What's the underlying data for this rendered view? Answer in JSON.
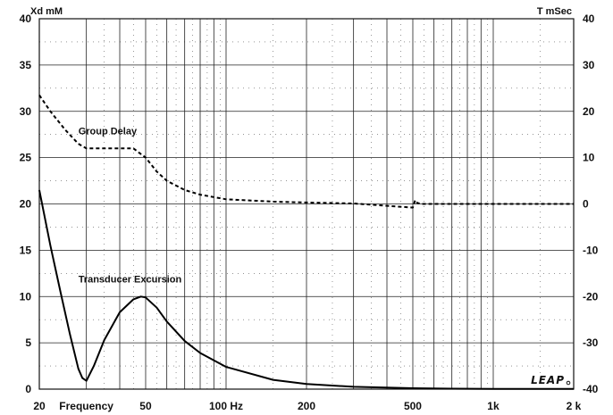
{
  "chart_data": {
    "type": "line",
    "x_scale": "log",
    "xlim": [
      20,
      2000
    ],
    "ylim_left": [
      0,
      40
    ],
    "ylim_right": [
      -40,
      40
    ],
    "grid": true,
    "left_axis_label": "Xd mM",
    "right_axis_label": "T mSec",
    "x_tick_labels": [
      {
        "value": 20,
        "label": "20"
      },
      {
        "value": 50,
        "label": "50"
      },
      {
        "value": 100,
        "label": "100 Hz"
      },
      {
        "value": 200,
        "label": "200"
      },
      {
        "value": 500,
        "label": "500"
      },
      {
        "value": 1000,
        "label": "1k"
      },
      {
        "value": 2000,
        "label": "2 k"
      }
    ],
    "x_caption": {
      "label": "Frequency",
      "value": 30
    },
    "left_ticks": [
      0,
      5,
      10,
      15,
      20,
      25,
      30,
      35,
      40
    ],
    "right_ticks": [
      -40,
      -30,
      -20,
      -10,
      0,
      10,
      20,
      30,
      40
    ],
    "series": [
      {
        "name": "Group Delay",
        "axis": "right",
        "style": "dashed",
        "label_x": 28,
        "label_y": 15,
        "x": [
          20,
          22,
          25,
          28,
          30,
          35,
          40,
          45,
          50,
          55,
          60,
          70,
          80,
          100,
          150,
          200,
          300,
          500,
          510,
          520,
          540,
          700,
          1000,
          1500,
          2000
        ],
        "y": [
          23.5,
          20,
          16,
          13,
          12,
          12,
          12,
          12,
          10,
          7,
          5,
          3,
          2,
          1,
          0.5,
          0.3,
          0.1,
          -0.8,
          0.8,
          0.2,
          0,
          0,
          0,
          0,
          0
        ]
      },
      {
        "name": "Transducer Excursion",
        "axis": "left",
        "style": "solid",
        "label_x": 28,
        "label_y": 11.5,
        "x": [
          20,
          22,
          24,
          26,
          28,
          29,
          30,
          32,
          35,
          40,
          45,
          48,
          50,
          55,
          60,
          70,
          80,
          100,
          150,
          200,
          300,
          500,
          700,
          1000,
          2000
        ],
        "y": [
          21.5,
          15.5,
          10.5,
          6,
          2.2,
          1.2,
          0.9,
          2.5,
          5.3,
          8.3,
          9.7,
          10.0,
          9.9,
          8.8,
          7.3,
          5.2,
          3.9,
          2.4,
          1.0,
          0.55,
          0.25,
          0.1,
          0.05,
          0.03,
          0.02
        ]
      }
    ]
  },
  "logo": {
    "text": "LEAP"
  }
}
